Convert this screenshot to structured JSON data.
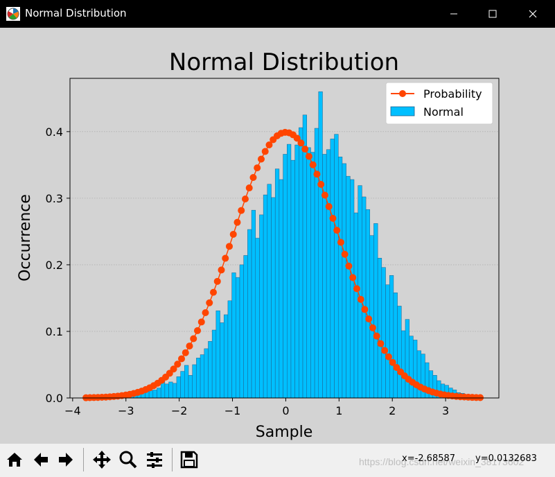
{
  "window": {
    "title": "Normal Distribution",
    "icon": "matplotlib-icon",
    "controls": {
      "minimize": "minimize-icon",
      "maximize": "maximize-icon",
      "close": "close-icon"
    }
  },
  "toolbar": {
    "buttons": [
      {
        "icon": "home-icon",
        "label": "Home"
      },
      {
        "icon": "back-arrow-icon",
        "label": "Back"
      },
      {
        "icon": "forward-arrow-icon",
        "label": "Forward"
      },
      {
        "icon": "pan-icon",
        "label": "Pan"
      },
      {
        "icon": "zoom-icon",
        "label": "Zoom"
      },
      {
        "icon": "configure-subplots-icon",
        "label": "Subplots"
      },
      {
        "icon": "save-icon",
        "label": "Save"
      }
    ],
    "x_readout": "x=-2.68587",
    "y_readout": "y=0.0132683",
    "watermark": "https://blog.csdn.net/weixin_38173602"
  },
  "chart_data": {
    "type": "bar",
    "title": "Normal Distribution",
    "xlabel": "Sample",
    "ylabel": "Occurrence",
    "xlim": [
      -4.05,
      4.0
    ],
    "ylim": [
      0,
      0.48
    ],
    "xticks": [
      -4,
      -3,
      -2,
      -1,
      0,
      1,
      2,
      3
    ],
    "xtick_labels": [
      "−4",
      "−3",
      "−2",
      "−1",
      "0",
      "1",
      "2",
      "3"
    ],
    "yticks": [
      0.0,
      0.1,
      0.2,
      0.3,
      0.4
    ],
    "ytick_labels": [
      "0.0",
      "0.1",
      "0.2",
      "0.3",
      "0.4"
    ],
    "grid": "horizontal dotted",
    "legend_position": "top-right",
    "series": [
      {
        "name": "Probability",
        "kind": "line-markers",
        "color": "#ff4500",
        "x_range": [
          -3.75,
          3.65
        ],
        "points": 100,
        "function": "normal pdf, mean 0, std 1"
      },
      {
        "name": "Normal",
        "kind": "histogram",
        "color": "#00bfff",
        "edgecolor": "#1f5f8b",
        "bin_range": [
          -3.75,
          3.65
        ],
        "bins": 100,
        "values": [
          0.001,
          0.001,
          0.001,
          0.002,
          0.001,
          0.002,
          0.002,
          0.003,
          0.003,
          0.004,
          0.005,
          0.005,
          0.006,
          0.008,
          0.008,
          0.01,
          0.011,
          0.012,
          0.015,
          0.027,
          0.021,
          0.024,
          0.022,
          0.032,
          0.04,
          0.049,
          0.034,
          0.05,
          0.06,
          0.065,
          0.074,
          0.085,
          0.102,
          0.131,
          0.113,
          0.125,
          0.146,
          0.188,
          0.181,
          0.2,
          0.214,
          0.253,
          0.282,
          0.24,
          0.275,
          0.305,
          0.321,
          0.301,
          0.344,
          0.328,
          0.366,
          0.381,
          0.357,
          0.38,
          0.406,
          0.425,
          0.376,
          0.369,
          0.405,
          0.46,
          0.366,
          0.373,
          0.389,
          0.396,
          0.362,
          0.352,
          0.333,
          0.328,
          0.278,
          0.319,
          0.302,
          0.283,
          0.244,
          0.262,
          0.21,
          0.196,
          0.17,
          0.184,
          0.158,
          0.138,
          0.101,
          0.118,
          0.093,
          0.087,
          0.071,
          0.066,
          0.053,
          0.041,
          0.034,
          0.026,
          0.021,
          0.019,
          0.015,
          0.012,
          0.008,
          0.007,
          0.005,
          0.003,
          0.002,
          0.001
        ]
      }
    ]
  },
  "colors": {
    "background": "#d3d3d3",
    "titlebar": "#000000",
    "toolbar": "#f0f0f0",
    "bar": "#00bfff",
    "line": "#ff4500"
  }
}
